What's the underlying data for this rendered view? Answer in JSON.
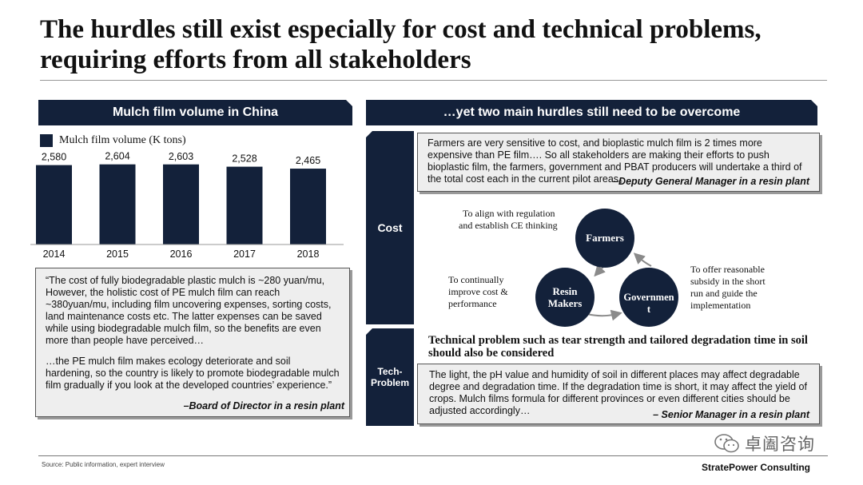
{
  "title": "The hurdles still exist especially for cost and technical problems, requiring efforts from all stakeholders",
  "left_section": {
    "header": "Mulch film volume in China",
    "legend": "Mulch film volume (K tons)"
  },
  "chart_data": {
    "type": "bar",
    "categories": [
      "2014",
      "2015",
      "2016",
      "2017",
      "2018"
    ],
    "values": [
      2580,
      2604,
      2603,
      2528,
      2465
    ],
    "value_labels": [
      "2,580",
      "2,604",
      "2,603",
      "2,528",
      "2,465"
    ],
    "series": [
      {
        "name": "Mulch film volume (K tons)",
        "values": [
          2580,
          2604,
          2603,
          2528,
          2465
        ]
      }
    ],
    "title": "Mulch film volume in China",
    "xlabel": "",
    "ylabel": "",
    "grid": false,
    "legend": "top-left",
    "color": "#13213a"
  },
  "left_quote": {
    "paragraph1": "“The cost of fully biodegradable plastic mulch is ~280 yuan/mu, However, the holistic cost of PE mulch film can reach ~380yuan/mu, including film uncovering expenses, sorting costs, land maintenance costs etc. The latter expenses can be saved while using biodegradable mulch film, so the benefits are even more than people have perceived…",
    "paragraph2": "…the PE mulch film makes ecology deteriorate and soil hardening, so the country is likely to promote biodegradable mulch film gradually if you look at the developed countries’ experience.”",
    "attribution": "–Board of Director in a resin plant"
  },
  "right_section": {
    "header": "…yet two main hurdles still need to be overcome",
    "cost_label": "Cost",
    "tech_label": "Tech-\nProblem",
    "cost_quote": {
      "text": "Farmers are very sensitive to cost, and bioplastic mulch film is 2 times more expensive than PE film…. So all stakeholders are making their efforts to push bioplastic film, the farmers, government and PBAT producers will undertake a third of the total cost each in the current pilot areas。",
      "attribution": "–Deputy General Manager in a resin plant"
    },
    "cycle": {
      "farmers": "Farmers",
      "resin_makers": [
        "Resin",
        "Makers"
      ],
      "government": [
        "Governmen",
        "t"
      ],
      "farmers_note": [
        "To align with regulation",
        "and establish CE thinking"
      ],
      "resin_note": [
        "To continually",
        "improve cost &",
        "performance"
      ],
      "gov_note": [
        "To offer reasonable",
        "subsidy in the short",
        "run and guide the",
        "implementation"
      ]
    },
    "tech_heading": "Technical problem such as tear strength and tailored degradation time in soil should also be considered",
    "tech_quote": {
      "text": "The light, the pH value and humidity of soil in different places may affect degradable degree and degradation time. If the degradation time is short, it may affect the yield of crops. Mulch films formula for different provinces or even different cities should be adjusted accordingly…",
      "attribution": "– Senior Manager in a resin plant"
    }
  },
  "footer": {
    "source": "Source: Public information, expert interview",
    "brand": "StratePower Consulting",
    "wechat": "卓阖咨询",
    "wechat_icon": "wechat-icon"
  }
}
